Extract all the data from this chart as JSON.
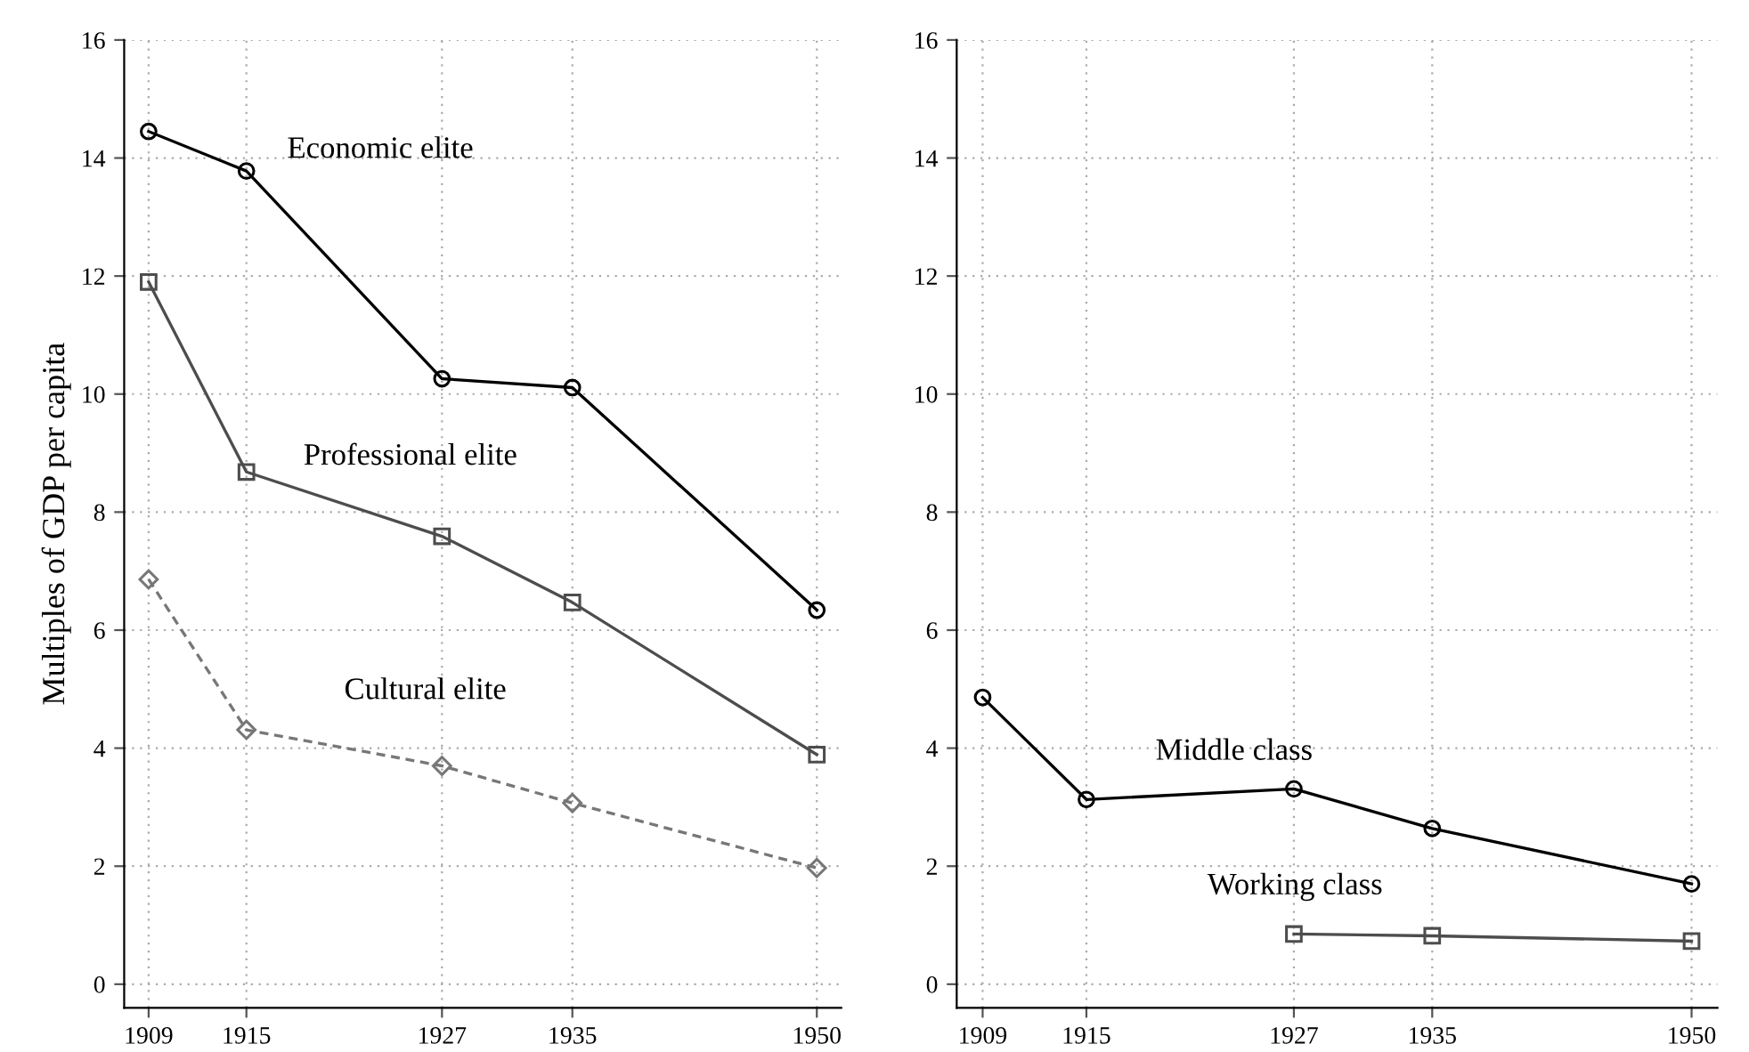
{
  "chart_data": [
    {
      "type": "line",
      "ylabel": "Multiples of GDP per capita",
      "x": [
        1909,
        1915,
        1927,
        1935,
        1950
      ],
      "xlim": [
        1907.5,
        1951.5
      ],
      "xticks": [
        1909,
        1915,
        1927,
        1935,
        1950
      ],
      "ylim": [
        -0.4,
        16
      ],
      "yticks": [
        0,
        2,
        4,
        6,
        8,
        10,
        12,
        14,
        16
      ],
      "grid": true,
      "legend": false,
      "series": [
        {
          "name": "Economic elite",
          "color": "#000000",
          "marker": "circle",
          "line_style": "solid",
          "values": [
            14.45,
            13.78,
            10.26,
            10.11,
            6.34
          ]
        },
        {
          "name": "Professional elite",
          "color": "#4d4d4d",
          "marker": "square",
          "line_style": "solid",
          "values": [
            11.9,
            8.68,
            7.59,
            6.47,
            3.89
          ]
        },
        {
          "name": "Cultural elite",
          "color": "#777777",
          "marker": "diamond",
          "line_style": "dashed",
          "values": [
            6.86,
            4.31,
            3.7,
            3.07,
            1.97
          ]
        }
      ]
    },
    {
      "type": "line",
      "x": [
        1909,
        1915,
        1927,
        1935,
        1950
      ],
      "xlim": [
        1907.5,
        1951.5
      ],
      "xticks": [
        1909,
        1915,
        1927,
        1935,
        1950
      ],
      "ylim": [
        -0.4,
        16
      ],
      "yticks": [
        0,
        2,
        4,
        6,
        8,
        10,
        12,
        14,
        16
      ],
      "grid": true,
      "legend": false,
      "series": [
        {
          "name": "Middle class",
          "color": "#000000",
          "marker": "circle",
          "line_style": "solid",
          "values": [
            4.86,
            3.13,
            3.31,
            2.64,
            1.7
          ]
        },
        {
          "name": "Working class",
          "color": "#4d4d4d",
          "marker": "square",
          "line_style": "solid",
          "values": [
            null,
            null,
            0.85,
            0.82,
            0.73
          ]
        }
      ]
    }
  ]
}
